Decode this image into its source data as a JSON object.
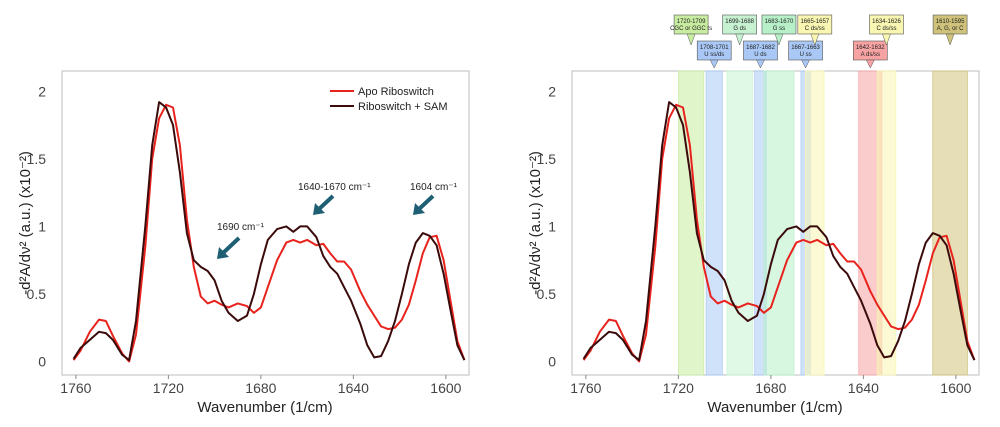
{
  "chart_data": [
    {
      "type": "line",
      "title": "",
      "xlabel": "Wavenumber (1/cm)",
      "ylabel": "-d²A/dν² (a.u.) (x10⁻²)",
      "xlim": [
        1590,
        1766
      ],
      "ylim": [
        -0.1,
        2.15
      ],
      "x_reversed": true,
      "x_ticks": [
        1760,
        1720,
        1680,
        1640,
        1600
      ],
      "y_ticks": [
        0,
        0.5,
        1,
        1.5,
        2
      ],
      "x_tick_labels": [
        "1760",
        "1720",
        "1680",
        "1640",
        "1600"
      ],
      "y_tick_labels": [
        "0",
        "0.5",
        "1",
        "1.5",
        "2"
      ],
      "grid": false,
      "legend_position": "top-right",
      "series": [
        {
          "name": "Apo Riboswitch",
          "color": "#e8221c",
          "points": [
            [
              1761,
              0.01
            ],
            [
              1758,
              0.08
            ],
            [
              1754,
              0.22
            ],
            [
              1750,
              0.31
            ],
            [
              1747,
              0.3
            ],
            [
              1744,
              0.19
            ],
            [
              1740,
              0.06
            ],
            [
              1737,
              0.0
            ],
            [
              1734,
              0.2
            ],
            [
              1730,
              0.85
            ],
            [
              1727,
              1.5
            ],
            [
              1724,
              1.8
            ],
            [
              1721,
              1.9
            ],
            [
              1718,
              1.88
            ],
            [
              1715,
              1.6
            ],
            [
              1712,
              1.05
            ],
            [
              1709,
              0.7
            ],
            [
              1706,
              0.48
            ],
            [
              1703,
              0.43
            ],
            [
              1700,
              0.45
            ],
            [
              1697,
              0.42
            ],
            [
              1694,
              0.4
            ],
            [
              1690,
              0.43
            ],
            [
              1686,
              0.41
            ],
            [
              1683,
              0.36
            ],
            [
              1680,
              0.4
            ],
            [
              1677,
              0.55
            ],
            [
              1673,
              0.75
            ],
            [
              1669,
              0.88
            ],
            [
              1666,
              0.9
            ],
            [
              1663,
              0.88
            ],
            [
              1660,
              0.9
            ],
            [
              1656,
              0.86
            ],
            [
              1653,
              0.87
            ],
            [
              1650,
              0.8
            ],
            [
              1647,
              0.74
            ],
            [
              1644,
              0.74
            ],
            [
              1641,
              0.68
            ],
            [
              1637,
              0.52
            ],
            [
              1634,
              0.42
            ],
            [
              1631,
              0.34
            ],
            [
              1628,
              0.26
            ],
            [
              1625,
              0.24
            ],
            [
              1622,
              0.25
            ],
            [
              1619,
              0.31
            ],
            [
              1616,
              0.42
            ],
            [
              1613,
              0.6
            ],
            [
              1610,
              0.8
            ],
            [
              1607,
              0.92
            ],
            [
              1604,
              0.93
            ],
            [
              1601,
              0.75
            ],
            [
              1598,
              0.45
            ],
            [
              1595,
              0.15
            ],
            [
              1592,
              0.01
            ]
          ]
        },
        {
          "name": "Riboswitch + SAM",
          "color": "#3b0b0b",
          "points": [
            [
              1761,
              0.02
            ],
            [
              1758,
              0.1
            ],
            [
              1754,
              0.16
            ],
            [
              1750,
              0.22
            ],
            [
              1747,
              0.21
            ],
            [
              1744,
              0.16
            ],
            [
              1740,
              0.05
            ],
            [
              1737,
              0.01
            ],
            [
              1734,
              0.3
            ],
            [
              1730,
              1.0
            ],
            [
              1727,
              1.6
            ],
            [
              1724,
              1.92
            ],
            [
              1721,
              1.88
            ],
            [
              1718,
              1.75
            ],
            [
              1715,
              1.4
            ],
            [
              1712,
              0.95
            ],
            [
              1709,
              0.75
            ],
            [
              1706,
              0.7
            ],
            [
              1703,
              0.67
            ],
            [
              1700,
              0.6
            ],
            [
              1697,
              0.45
            ],
            [
              1694,
              0.36
            ],
            [
              1690,
              0.3
            ],
            [
              1686,
              0.34
            ],
            [
              1683,
              0.5
            ],
            [
              1680,
              0.72
            ],
            [
              1677,
              0.9
            ],
            [
              1673,
              0.98
            ],
            [
              1669,
              1.0
            ],
            [
              1666,
              0.96
            ],
            [
              1663,
              1.0
            ],
            [
              1660,
              1.0
            ],
            [
              1656,
              0.92
            ],
            [
              1653,
              0.78
            ],
            [
              1650,
              0.7
            ],
            [
              1647,
              0.65
            ],
            [
              1644,
              0.55
            ],
            [
              1641,
              0.45
            ],
            [
              1637,
              0.28
            ],
            [
              1634,
              0.12
            ],
            [
              1631,
              0.03
            ],
            [
              1628,
              0.04
            ],
            [
              1625,
              0.15
            ],
            [
              1622,
              0.3
            ],
            [
              1619,
              0.5
            ],
            [
              1616,
              0.72
            ],
            [
              1613,
              0.88
            ],
            [
              1610,
              0.95
            ],
            [
              1607,
              0.93
            ],
            [
              1604,
              0.86
            ],
            [
              1601,
              0.65
            ],
            [
              1598,
              0.38
            ],
            [
              1595,
              0.12
            ],
            [
              1592,
              0.01
            ]
          ]
        }
      ],
      "annotations": [
        {
          "text": "1690 cm⁻¹",
          "x": 1690,
          "y": 0.72
        },
        {
          "text": "1640-1670 cm⁻¹",
          "x": 1655,
          "y": 1.05
        },
        {
          "text": "1604 cm⁻¹",
          "x": 1604,
          "y": 1.01
        }
      ],
      "arrow_color": "#1e5f74"
    },
    {
      "type": "line",
      "title": "",
      "xlabel": "Wavenumber (1/cm)",
      "ylabel": "-d²A/dν² (a.u.) (x10⁻²)",
      "xlim": [
        1590,
        1766
      ],
      "ylim": [
        -0.1,
        2.15
      ],
      "x_reversed": true,
      "x_ticks": [
        1760,
        1720,
        1680,
        1640,
        1600
      ],
      "y_ticks": [
        0,
        0.5,
        1,
        1.5,
        2
      ],
      "x_tick_labels": [
        "1760",
        "1720",
        "1680",
        "1640",
        "1600"
      ],
      "y_tick_labels": [
        "0",
        "0.5",
        "1",
        "1.5",
        "2"
      ],
      "grid": false,
      "series": [
        {
          "name": "Apo Riboswitch",
          "color": "#e8221c",
          "same_as_left": true
        },
        {
          "name": "Riboswitch + SAM",
          "color": "#3b0b0b",
          "same_as_left": true
        }
      ],
      "bands": [
        {
          "range": [
            1720,
            1709
          ],
          "label_line1": "1720-1709",
          "label_line2": "CGC or GGC ts",
          "color": "#c8eca0",
          "row": "top"
        },
        {
          "range": [
            1708,
            1701
          ],
          "label_line1": "1708-1701",
          "label_line2": "U ss/ds",
          "color": "#a9c8f5",
          "row": "bottom"
        },
        {
          "range": [
            1699,
            1688
          ],
          "label_line1": "1699-1688",
          "label_line2": "G ds",
          "color": "#c7f2d2",
          "row": "top"
        },
        {
          "range": [
            1687,
            1682
          ],
          "label_line1": "1687-1682",
          "label_line2": "U ds",
          "color": "#a9c8f5",
          "row": "bottom"
        },
        {
          "range": [
            1683,
            1670
          ],
          "label_line1": "1683-1670",
          "label_line2": "G ss",
          "color": "#b7f0c8",
          "row": "top"
        },
        {
          "range": [
            1667,
            1663
          ],
          "label_line1": "1667-1663",
          "label_line2": "U ss",
          "color": "#a9c8f5",
          "row": "bottom"
        },
        {
          "range": [
            1665,
            1657
          ],
          "label_line1": "1665-1657",
          "label_line2": "C ds/ss",
          "color": "#f8f6b0",
          "row": "top"
        },
        {
          "range": [
            1642,
            1632
          ],
          "label_line1": "1642-1632",
          "label_line2": "A ds/ss",
          "color": "#f7a3a3",
          "row": "bottom"
        },
        {
          "range": [
            1634,
            1626
          ],
          "label_line1": "1634-1626",
          "label_line2": "C ds/ss",
          "color": "#f8f6b0",
          "row": "top"
        },
        {
          "range": [
            1610,
            1595
          ],
          "label_line1": "1610-1595",
          "label_line2": "A, G, or C",
          "color": "#cfc27a",
          "row": "top"
        }
      ]
    }
  ]
}
